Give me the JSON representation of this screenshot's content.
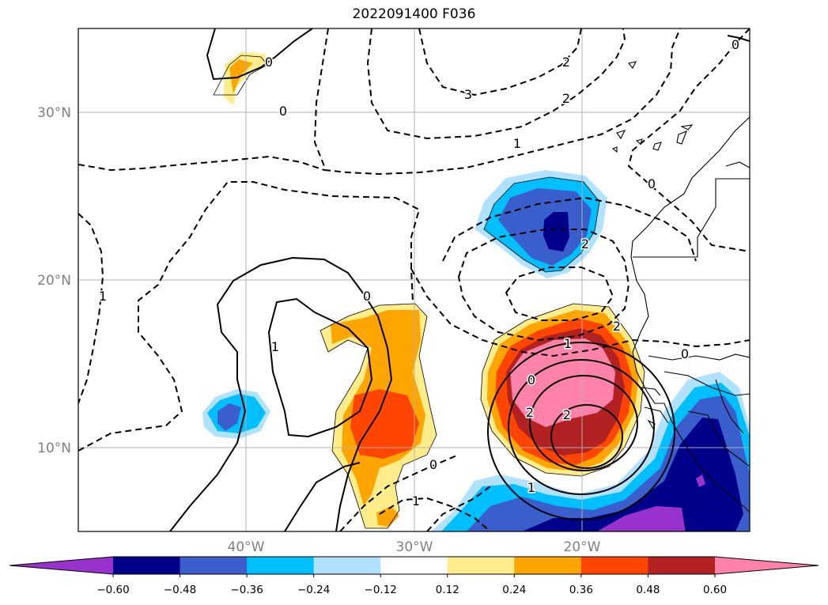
{
  "title": "2022091400 F036",
  "map": {
    "lat_labels": [
      "30°N",
      "20°N",
      "10°N"
    ],
    "lon_labels": [
      "40°W",
      "30°W",
      "20°W"
    ],
    "grid": true,
    "contour_labels": [
      "0",
      "0",
      "1",
      "1",
      "0",
      "2",
      "3",
      "2",
      "1",
      "0",
      "0",
      "2",
      "2",
      "1",
      "0",
      "2",
      "2",
      "0",
      "0",
      "1",
      "1"
    ]
  },
  "colorbar": {
    "orientation": "horizontal",
    "extend": "both",
    "ticks": [
      "−0.60",
      "−0.48",
      "−0.36",
      "−0.24",
      "−0.12",
      "0.12",
      "0.24",
      "0.36",
      "0.48",
      "0.60"
    ],
    "colors": [
      "#9932cc",
      "#00008b",
      "#3a5fcd",
      "#00bfff",
      "#b0e2ff",
      "#ffffff",
      "#ffec8b",
      "#ffa500",
      "#ff4500",
      "#b22222",
      "#ff82ab",
      "#ff82ab"
    ]
  }
}
